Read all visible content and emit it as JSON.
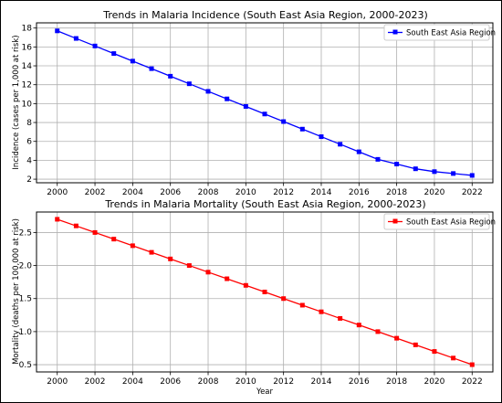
{
  "chart_data": [
    {
      "type": "line",
      "title": "Trends in Malaria Incidence (South East Asia Region, 2000-2023)",
      "xlabel": "",
      "ylabel": "Incidence (cases per 1,000 at risk)",
      "x": [
        2000,
        2001,
        2002,
        2003,
        2004,
        2005,
        2006,
        2007,
        2008,
        2009,
        2010,
        2011,
        2012,
        2013,
        2014,
        2015,
        2016,
        2017,
        2018,
        2019,
        2020,
        2021,
        2022
      ],
      "xticks": [
        2000,
        2002,
        2004,
        2006,
        2008,
        2010,
        2012,
        2014,
        2016,
        2018,
        2020,
        2022
      ],
      "xtick_labels": [
        "2000",
        "2002",
        "2004",
        "2006",
        "2008",
        "2010",
        "2012",
        "2014",
        "2016",
        "2018",
        "2020",
        "2022"
      ],
      "xlim": [
        1998.9,
        2023.1
      ],
      "yticks": [
        2,
        4,
        6,
        8,
        10,
        12,
        14,
        16,
        18
      ],
      "ytick_labels": [
        "2",
        "4",
        "6",
        "8",
        "10",
        "12",
        "14",
        "16",
        "18"
      ],
      "ylim": [
        1.62,
        18.55
      ],
      "grid": true,
      "legend_position": "top-right",
      "series": [
        {
          "name": "South East Asia Region",
          "color": "#0000ff",
          "marker": "square",
          "values": [
            17.7,
            16.9,
            16.1,
            15.3,
            14.5,
            13.7,
            12.9,
            12.1,
            11.3,
            10.5,
            9.7,
            8.9,
            8.1,
            7.3,
            6.5,
            5.7,
            4.9,
            4.1,
            3.6,
            3.1,
            2.8,
            2.6,
            2.4
          ]
        }
      ]
    },
    {
      "type": "line",
      "title": "Trends in Malaria Mortality (South East Asia Region, 2000-2023)",
      "xlabel": "Year",
      "ylabel": "Mortality (deaths per 100,000 at risk)",
      "x": [
        2000,
        2001,
        2002,
        2003,
        2004,
        2005,
        2006,
        2007,
        2008,
        2009,
        2010,
        2011,
        2012,
        2013,
        2014,
        2015,
        2016,
        2017,
        2018,
        2019,
        2020,
        2021,
        2022
      ],
      "xticks": [
        2000,
        2002,
        2004,
        2006,
        2008,
        2010,
        2012,
        2014,
        2016,
        2018,
        2020,
        2022
      ],
      "xtick_labels": [
        "2000",
        "2002",
        "2004",
        "2006",
        "2008",
        "2010",
        "2012",
        "2014",
        "2016",
        "2018",
        "2020",
        "2022"
      ],
      "xlim": [
        1998.9,
        2023.1
      ],
      "yticks": [
        0.5,
        1.0,
        1.5,
        2.0,
        2.5
      ],
      "ytick_labels": [
        "0.5",
        "1.0",
        "1.5",
        "2.0",
        "2.5"
      ],
      "ylim": [
        0.39,
        2.81
      ],
      "grid": true,
      "legend_position": "top-right",
      "series": [
        {
          "name": "South East Asia Region",
          "color": "#ff0000",
          "marker": "square",
          "values": [
            2.7,
            2.6,
            2.5,
            2.4,
            2.3,
            2.2,
            2.1,
            2.0,
            1.9,
            1.8,
            1.7,
            1.6,
            1.5,
            1.4,
            1.3,
            1.2,
            1.1,
            1.0,
            0.9,
            0.8,
            0.7,
            0.6,
            0.5
          ]
        }
      ]
    }
  ]
}
